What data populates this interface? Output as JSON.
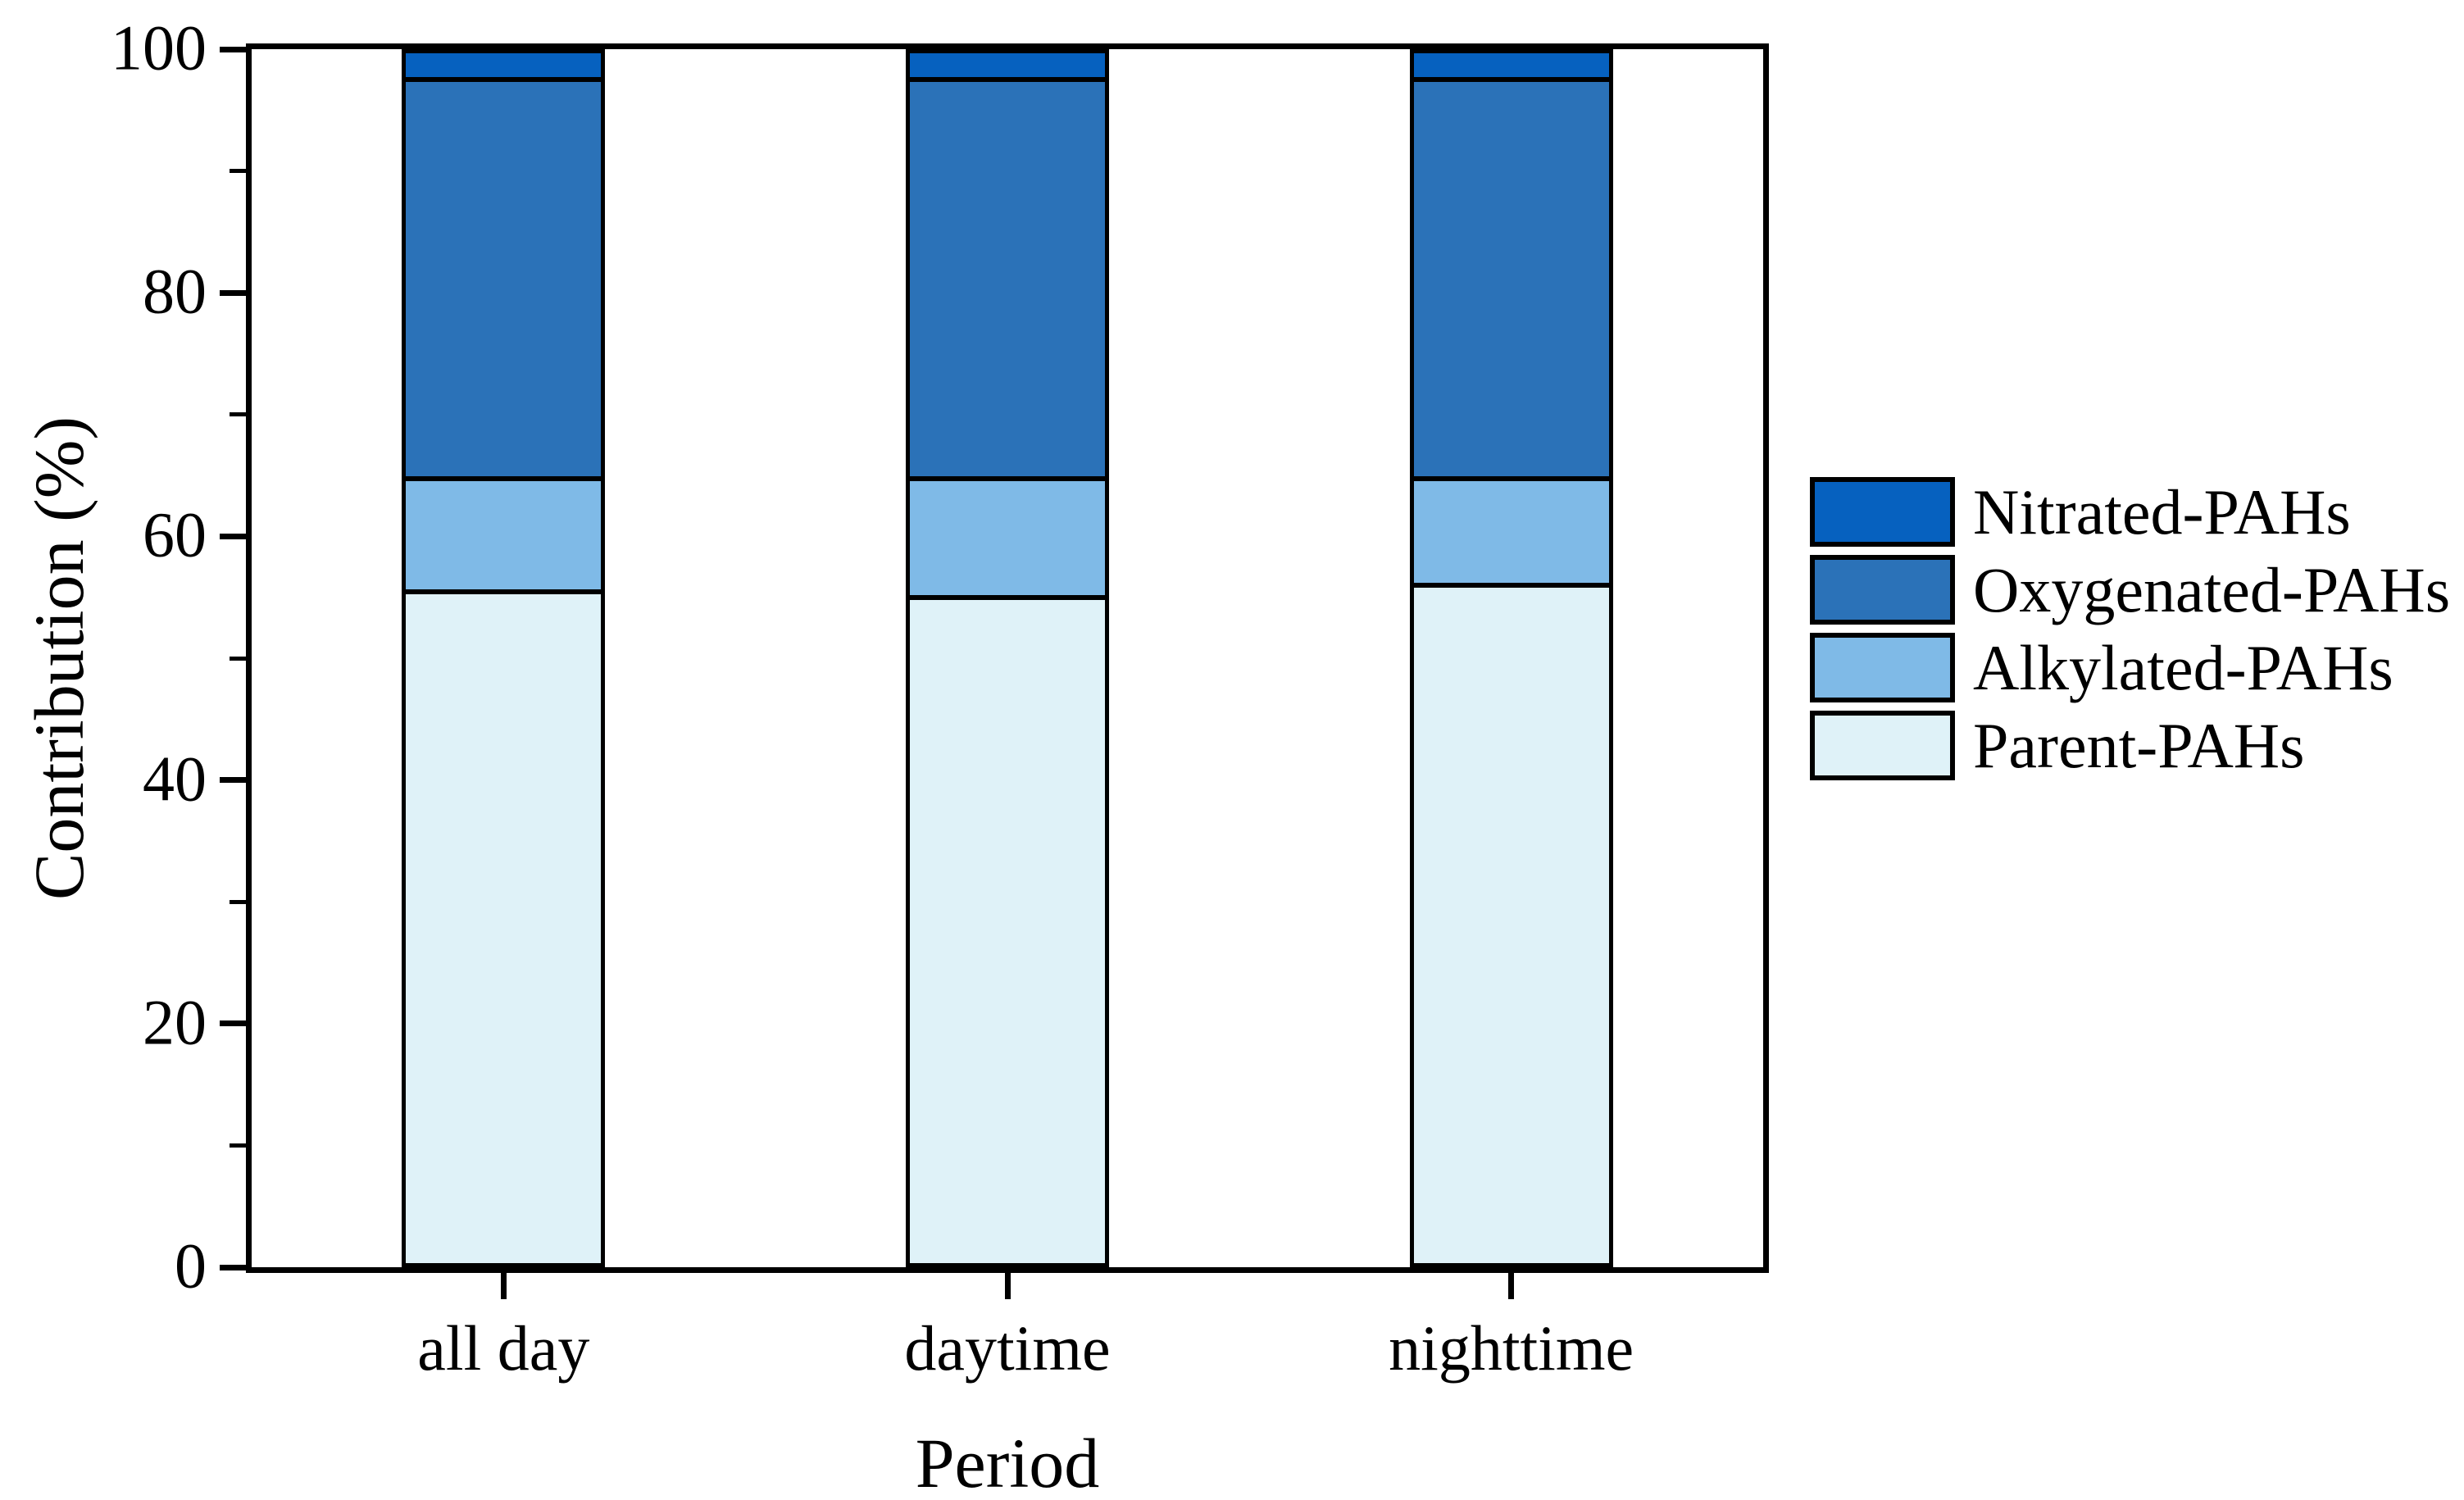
{
  "figure": {
    "background": "#ffffff",
    "axis_color": "#000000"
  },
  "chart_data": {
    "type": "bar",
    "stacked": true,
    "title": "",
    "xlabel": "Period",
    "ylabel": "Contribution (%)",
    "categories": [
      "all day",
      "daytime",
      "nighttime"
    ],
    "series": [
      {
        "name": "Parent-PAHs",
        "color": "#DFF2F8",
        "values": [
          56.0,
          55.5,
          56.5
        ]
      },
      {
        "name": "Alkylated-PAHs",
        "color": "#7FBAE7",
        "values": [
          9.0,
          9.5,
          8.5
        ]
      },
      {
        "name": "Oxygenated-PAHs",
        "color": "#2B72B8",
        "values": [
          33.0,
          33.0,
          33.0
        ]
      },
      {
        "name": "Nitrated-PAHs",
        "color": "#0661BF",
        "values": [
          2.0,
          2.0,
          2.0
        ]
      }
    ],
    "legend_order": [
      "Nitrated-PAHs",
      "Oxygenated-PAHs",
      "Alkylated-PAHs",
      "Parent-PAHs"
    ],
    "legend_position": "right",
    "ylim": [
      0,
      100
    ],
    "yticks": [
      0,
      20,
      40,
      60,
      80,
      100
    ],
    "yticks_minor": [
      10,
      30,
      50,
      70,
      90
    ],
    "grid": false
  }
}
